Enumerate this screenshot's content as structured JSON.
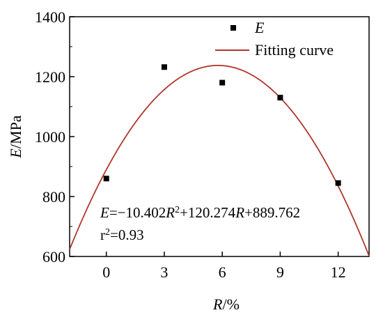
{
  "chart_data": {
    "type": "scatter",
    "x_axis": {
      "label_italic": "R",
      "label_rest": "/%",
      "ticks": [
        0,
        3,
        6,
        9,
        12
      ],
      "range": [
        -1.9,
        13.6
      ]
    },
    "y_axis": {
      "label_italic": "E",
      "label_rest": "/MPa",
      "ticks": [
        600,
        800,
        1000,
        1200,
        1400
      ],
      "range": [
        600,
        1400
      ]
    },
    "series": [
      {
        "name": "E",
        "kind": "points",
        "color": "#000000",
        "points": [
          {
            "x": 0,
            "y": 860
          },
          {
            "x": 3,
            "y": 1232
          },
          {
            "x": 6,
            "y": 1180
          },
          {
            "x": 9,
            "y": 1130
          },
          {
            "x": 12,
            "y": 845
          }
        ]
      },
      {
        "name": "Fitting curve",
        "kind": "fit",
        "color": "#b0362c",
        "coefficients": {
          "a": -10.402,
          "b": 120.274,
          "c": 889.762
        }
      }
    ],
    "legend": {
      "position": "top-right",
      "scatter_label": "E",
      "fit_label": "Fitting curve"
    },
    "annotation": {
      "equation": {
        "p1": "E",
        "p2": "=−10.402",
        "p3": "R",
        "p4": "2",
        "p5": "+120.274",
        "p6": "R",
        "p7": "+889.762"
      },
      "r2": {
        "p1": "r",
        "p2": "2",
        "p3": "=0.93"
      }
    },
    "grid": false
  }
}
